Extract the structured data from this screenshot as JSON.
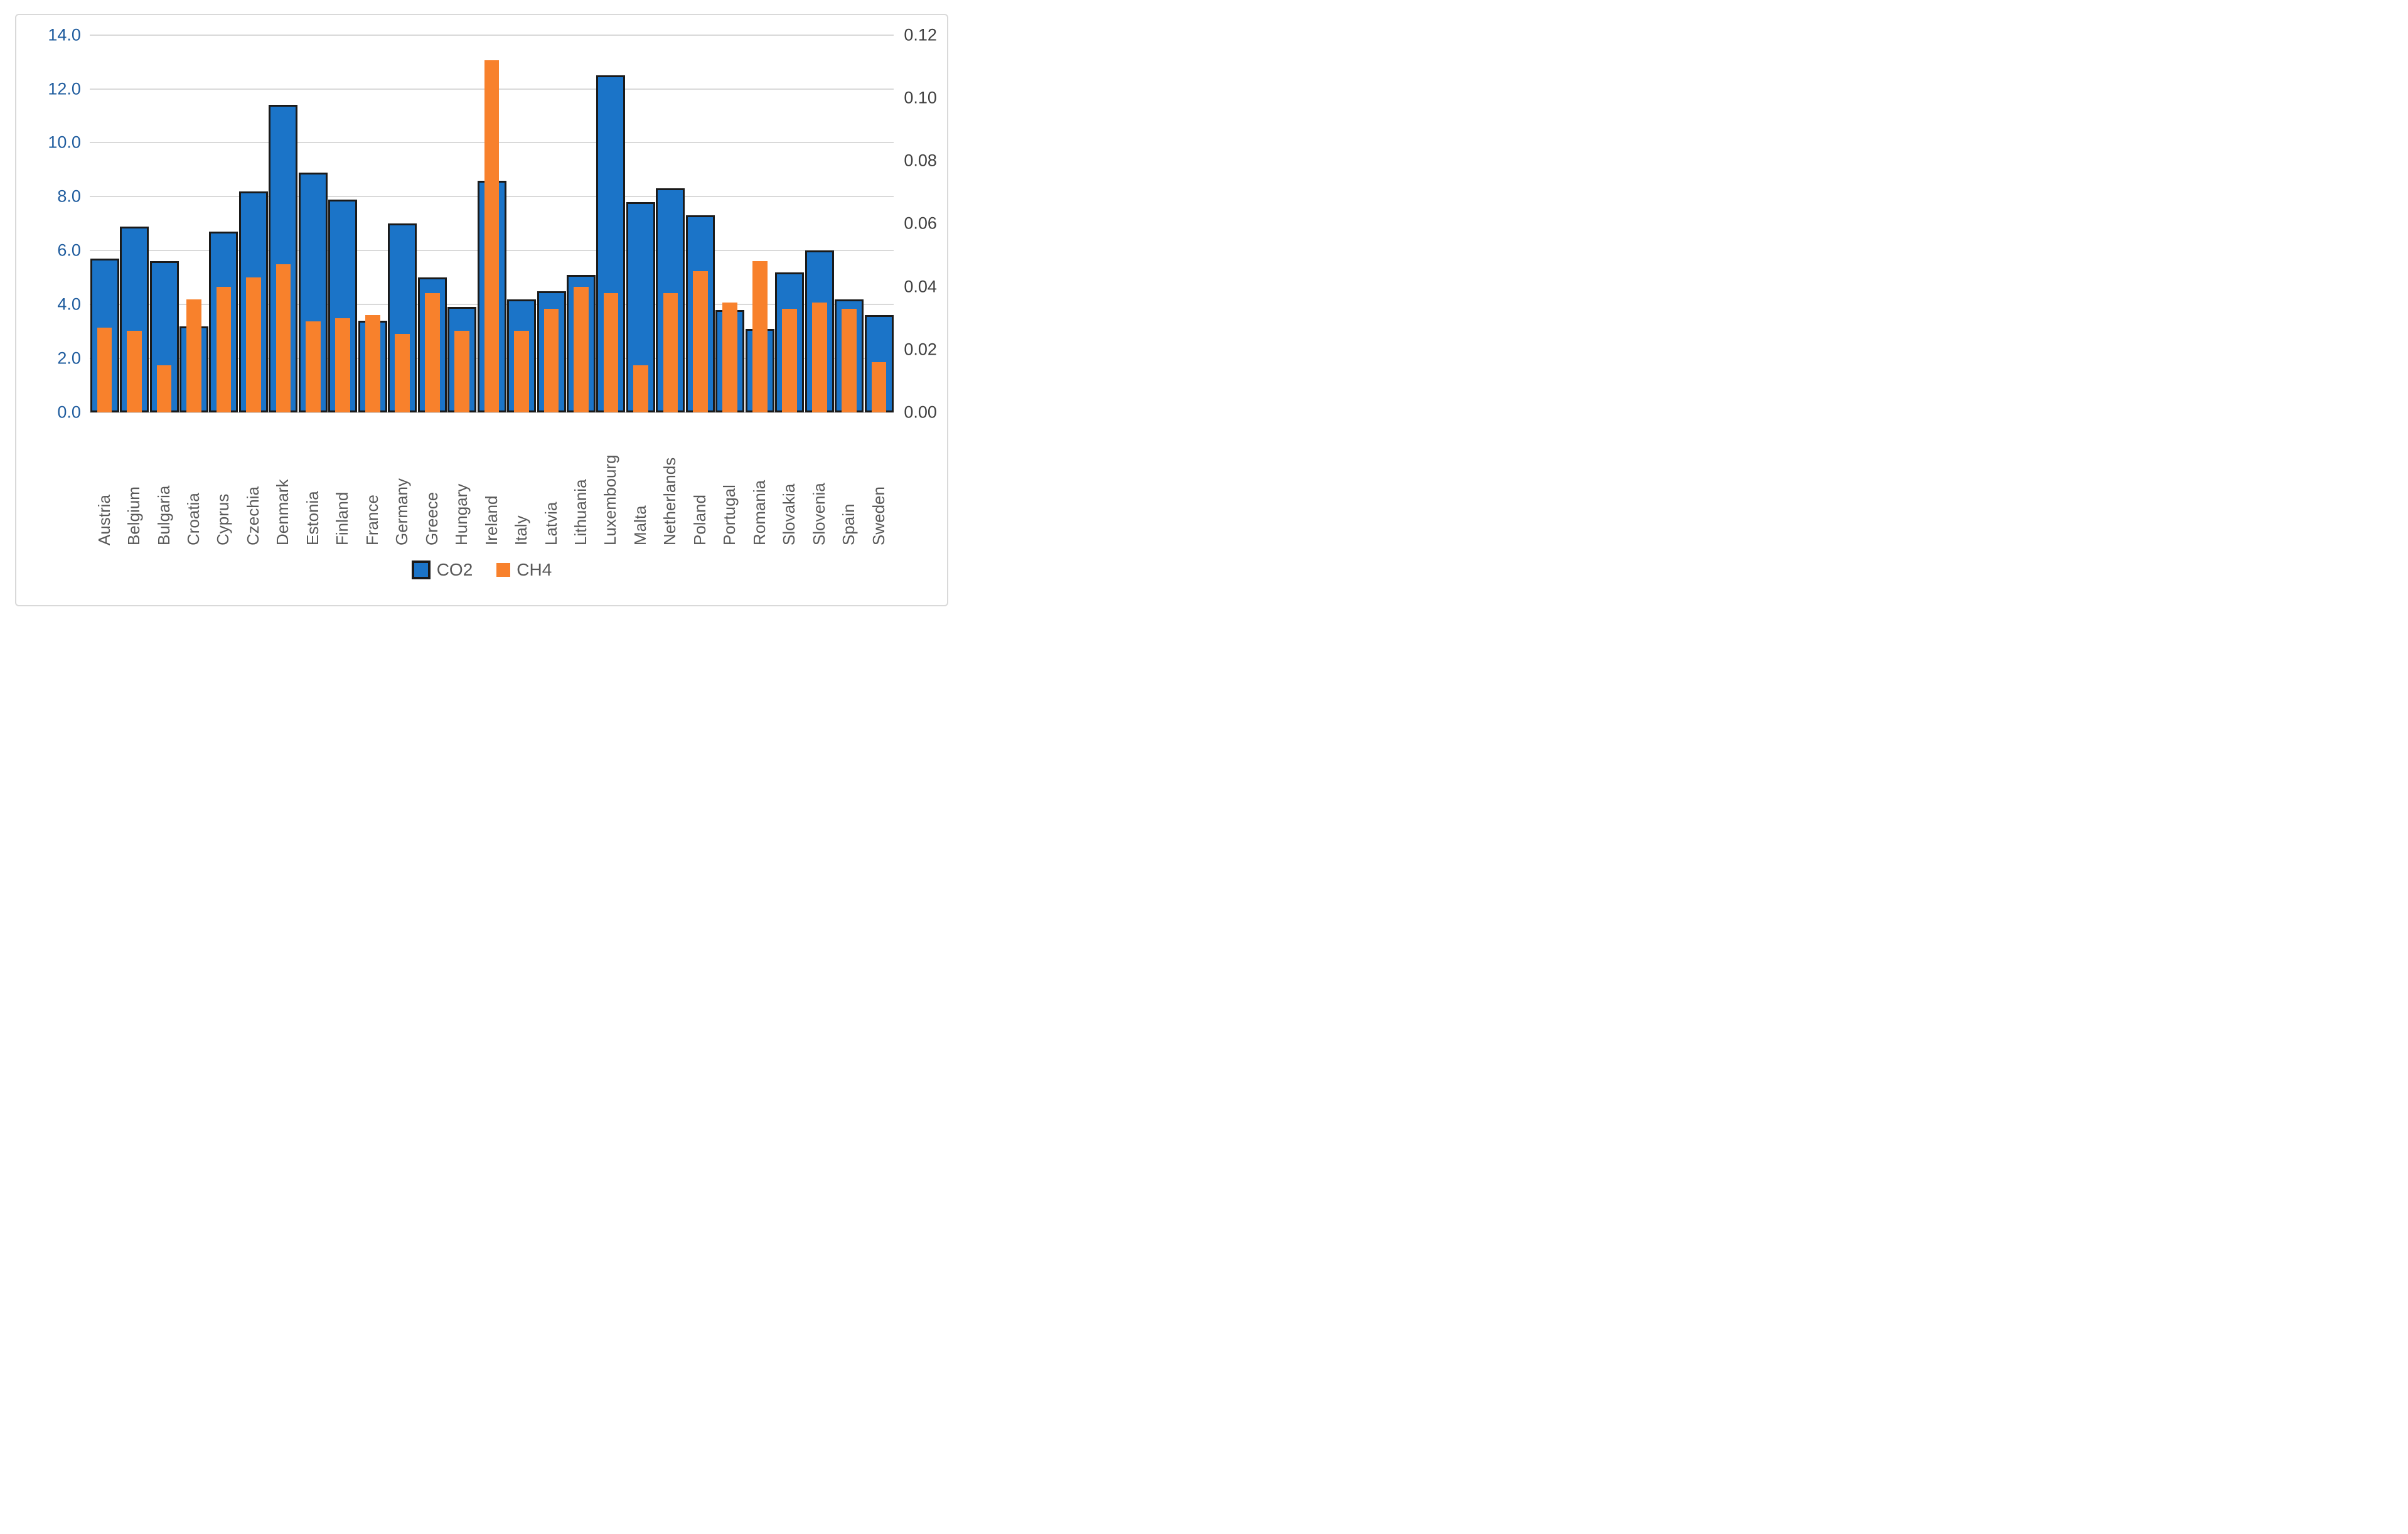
{
  "chart_data": {
    "type": "bar",
    "dual_axis": true,
    "categories": [
      "Austria",
      "Belgium",
      "Bulgaria",
      "Croatia",
      "Cyprus",
      "Czechia",
      "Denmark",
      "Estonia",
      "Finland",
      "France",
      "Germany",
      "Greece",
      "Hungary",
      "Ireland",
      "Italy",
      "Latvia",
      "Lithuania",
      "Luxembourg",
      "Malta",
      "Netherlands",
      "Poland",
      "Portugal",
      "Romania",
      "Slovakia",
      "Slovenia",
      "Spain",
      "Sweden"
    ],
    "series": [
      {
        "name": "CO2",
        "axis": "left",
        "color": "#1b74c8",
        "outline_color": "#1a1a1a",
        "values": [
          5.7,
          6.9,
          5.6,
          3.2,
          6.7,
          8.2,
          11.4,
          8.9,
          7.9,
          3.4,
          7.0,
          5.0,
          3.9,
          8.6,
          4.2,
          4.5,
          5.1,
          12.5,
          7.8,
          8.3,
          7.3,
          3.8,
          3.1,
          5.2,
          6.0,
          4.2,
          3.6
        ]
      },
      {
        "name": "CH4",
        "axis": "right",
        "color": "#f8812c",
        "values": [
          0.027,
          0.026,
          0.015,
          0.036,
          0.04,
          0.043,
          0.047,
          0.029,
          0.03,
          0.031,
          0.025,
          0.038,
          0.026,
          0.112,
          0.026,
          0.033,
          0.04,
          0.038,
          0.015,
          0.038,
          0.045,
          0.035,
          0.048,
          0.033,
          0.035,
          0.033,
          0.016
        ]
      }
    ],
    "left_axis": {
      "min": 0,
      "max": 14,
      "step": 2,
      "tick_labels": [
        "0.0",
        "2.0",
        "4.0",
        "6.0",
        "8.0",
        "10.0",
        "12.0",
        "14.0"
      ],
      "label_color": "#1f5c9e"
    },
    "right_axis": {
      "min": 0,
      "max": 0.12,
      "step": 0.02,
      "tick_labels": [
        "0.00",
        "0.02",
        "0.04",
        "0.06",
        "0.08",
        "0.10",
        "0.12"
      ],
      "label_color": "#3f3f3f"
    },
    "grid": true,
    "gridline_color": "#d9d9d9",
    "legend": {
      "position": "bottom",
      "entries": [
        {
          "label": "CO2",
          "color": "#1b74c8"
        },
        {
          "label": "CH4",
          "color": "#f8812c"
        }
      ]
    },
    "category_label_color": "#595959"
  },
  "legend": {
    "co2_label": "CO2",
    "ch4_label": "CH4"
  }
}
